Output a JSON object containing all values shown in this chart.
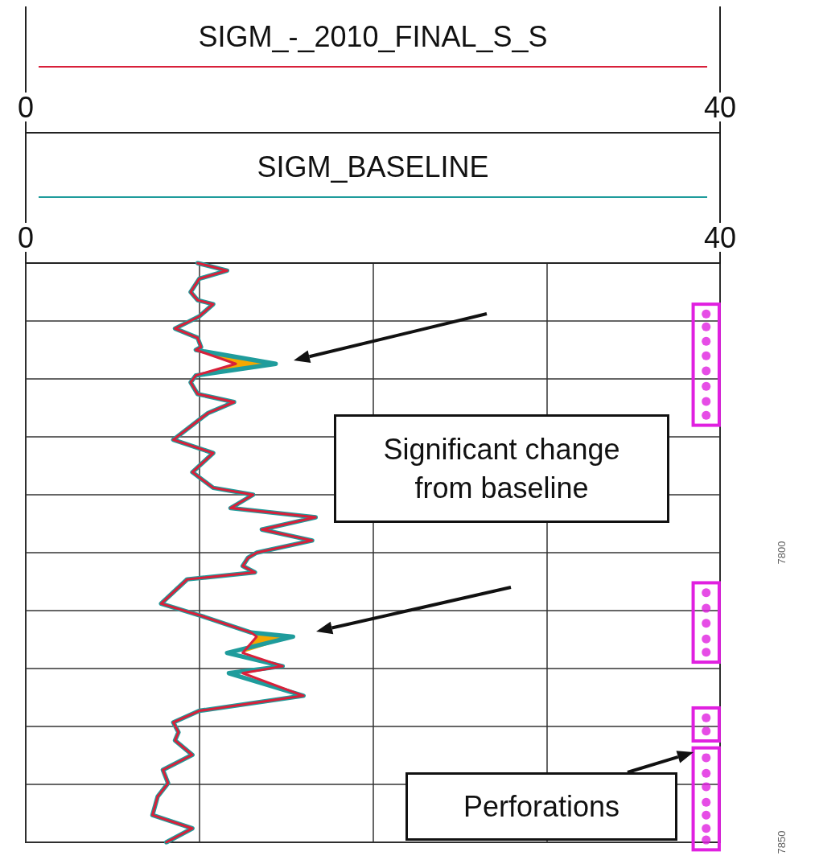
{
  "chart_data": {
    "type": "line",
    "legend": "top",
    "grid": true,
    "xlim": [
      0,
      40
    ],
    "xticks": [
      0,
      {
        "value": 10,
        "label": null
      },
      {
        "value": 20,
        "label": null
      },
      {
        "value": 30,
        "label": null
      },
      40
    ],
    "x2lim": [
      0,
      40
    ],
    "x2ticks": [
      0,
      40
    ],
    "ylim": [
      7850,
      7750
    ],
    "yticks": [
      {
        "value": 7750,
        "label": null
      },
      {
        "value": 7760,
        "label": null
      },
      {
        "value": 7770,
        "label": null
      },
      {
        "value": 7780,
        "label": null
      },
      {
        "value": 7790,
        "label": null
      },
      7800,
      {
        "value": 7810,
        "label": null
      },
      {
        "value": 7820,
        "label": null
      },
      {
        "value": 7830,
        "label": null
      },
      {
        "value": 7840,
        "label": null
      },
      7850
    ],
    "annotations": [
      "Significant change from baseline",
      "Perforations"
    ],
    "series": [
      {
        "name": "SIGM_-_2010_FINAL_S_S",
        "color": "#d8203a",
        "x": [
          9.9,
          11.6,
          10.0,
          9.5,
          9.9,
          10.8,
          10.0,
          8.6,
          9.9,
          10.1,
          9.8,
          12.1,
          9.8,
          9.5,
          9.9,
          12.0,
          10.5,
          10.1,
          8.5,
          10.8,
          9.6,
          10.8,
          13.1,
          11.8,
          16.7,
          13.6,
          16.5,
          13.3,
          12.8,
          12.5,
          13.2,
          9.3,
          7.8,
          10.0,
          13.0,
          13.3,
          12.5,
          14.8,
          12.5,
          16.0,
          10.0,
          8.5,
          8.8,
          8.6,
          9.6,
          7.9,
          8.2,
          7.6,
          7.3,
          9.6,
          8.1
        ],
        "values": [
          7750,
          7751.3,
          7752.7,
          7755,
          7756.4,
          7757.1,
          7759.2,
          7761.3,
          7762.9,
          7764.5,
          7765,
          7767.4,
          7769.4,
          7770.6,
          7772.6,
          7774,
          7775.9,
          7776.8,
          7780.5,
          7782.8,
          7786.1,
          7788.8,
          7790,
          7792.3,
          7793.9,
          7796,
          7797.9,
          7800,
          7800.9,
          7802.3,
          7803.4,
          7804.6,
          7808.8,
          7810.8,
          7813.8,
          7814.5,
          7817.3,
          7819.6,
          7820.8,
          7824.7,
          7827.3,
          7829.3,
          7831,
          7832.4,
          7834.9,
          7837.5,
          7839.8,
          7842.1,
          7845.3,
          7847.6,
          7850
        ]
      },
      {
        "name": "SIGM_BASELINE",
        "color": "#1f9c9c",
        "x": [
          9.9,
          11.6,
          10.0,
          9.5,
          9.9,
          10.8,
          10.0,
          8.6,
          9.9,
          10.1,
          9.8,
          14.4,
          9.8,
          9.5,
          9.9,
          12.0,
          10.5,
          10.1,
          8.5,
          10.8,
          9.6,
          10.8,
          13.1,
          11.8,
          16.7,
          13.6,
          16.5,
          13.3,
          12.8,
          12.5,
          13.2,
          9.3,
          7.8,
          10.0,
          13.0,
          15.4,
          11.6,
          14.8,
          11.7,
          16.0,
          10.0,
          8.5,
          8.8,
          8.6,
          9.6,
          7.9,
          8.2,
          7.6,
          7.3,
          9.6,
          8.1
        ],
        "values": [
          7750,
          7751.3,
          7752.7,
          7755,
          7756.4,
          7757.1,
          7759.2,
          7761.3,
          7762.9,
          7764.5,
          7765,
          7767.4,
          7769.4,
          7770.6,
          7772.6,
          7774,
          7775.9,
          7776.8,
          7780.5,
          7782.8,
          7786.1,
          7788.8,
          7790,
          7792.3,
          7793.9,
          7796,
          7797.9,
          7800,
          7800.9,
          7802.3,
          7803.4,
          7804.6,
          7808.8,
          7810.8,
          7813.8,
          7814.5,
          7817.3,
          7819.6,
          7820.8,
          7824.7,
          7827.3,
          7829.3,
          7831,
          7832.4,
          7834.9,
          7837.5,
          7839.8,
          7842.1,
          7845.3,
          7847.6,
          7850
        ]
      },
      {
        "type": "scatter",
        "color": "#e020e0",
        "x": [
          39.2,
          39.2,
          39.2,
          39.2,
          39.2,
          39.2,
          39.2,
          39.2
        ],
        "values": [
          7758.8,
          7761,
          7763.5,
          7766,
          7768.6,
          7771.3,
          7773.9,
          7776.3
        ]
      },
      {
        "type": "scatter",
        "color": "#e020e0",
        "x": [
          39.2,
          39.2,
          39.2,
          39.2,
          39.2
        ],
        "values": [
          7806.9,
          7809.6,
          7812.2,
          7814.9,
          7817.2
        ]
      },
      {
        "type": "scatter",
        "color": "#e020e0",
        "x": [
          39.2,
          39.2
        ],
        "values": [
          7828.5,
          7830.8
        ]
      },
      {
        "type": "scatter",
        "color": "#e020e0",
        "x": [
          39.2,
          39.2,
          39.2,
          39.2,
          39.2,
          39.2,
          39.2
        ],
        "values": [
          7835.4,
          7838.1,
          7840.4,
          7843.1,
          7845.3,
          7847.6,
          7849.6
        ]
      }
    ]
  }
}
